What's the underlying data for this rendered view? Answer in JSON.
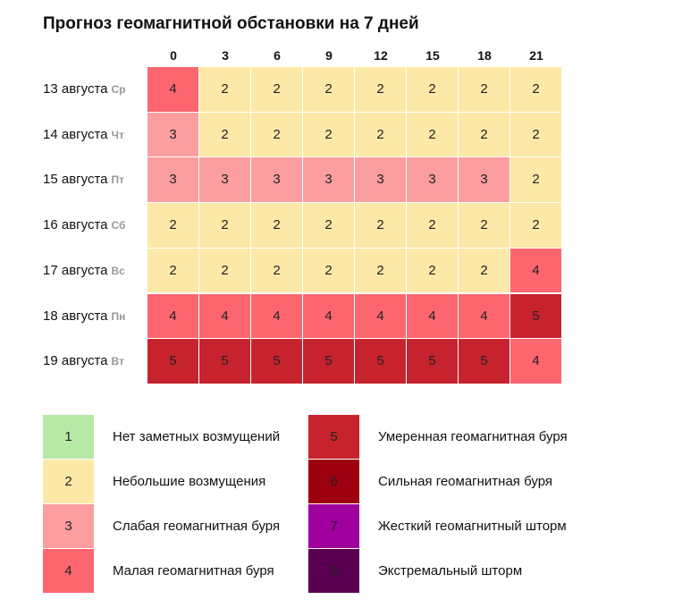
{
  "header": {
    "title": "Прогноз геомагнитной обстановки на 7 дней"
  },
  "table": {
    "columns": [
      "0",
      "3",
      "6",
      "9",
      "12",
      "15",
      "18",
      "21"
    ],
    "rows": [
      {
        "date": "13 августа",
        "weekday": "Ср",
        "values": [
          4,
          2,
          2,
          2,
          2,
          2,
          2,
          2
        ]
      },
      {
        "date": "14 августа",
        "weekday": "Чт",
        "values": [
          3,
          2,
          2,
          2,
          2,
          2,
          2,
          2
        ]
      },
      {
        "date": "15 августа",
        "weekday": "Пт",
        "values": [
          3,
          3,
          3,
          3,
          3,
          3,
          3,
          2
        ]
      },
      {
        "date": "16 августа",
        "weekday": "Сб",
        "values": [
          2,
          2,
          2,
          2,
          2,
          2,
          2,
          2
        ]
      },
      {
        "date": "17 августа",
        "weekday": "Вс",
        "values": [
          2,
          2,
          2,
          2,
          2,
          2,
          2,
          4
        ]
      },
      {
        "date": "18 августа",
        "weekday": "Пн",
        "values": [
          4,
          4,
          4,
          4,
          4,
          4,
          4,
          5
        ]
      },
      {
        "date": "19 августа",
        "weekday": "Вт",
        "values": [
          5,
          5,
          5,
          5,
          5,
          5,
          5,
          4
        ]
      }
    ]
  },
  "legend": [
    {
      "level": 1,
      "label": "Нет заметных возмущений",
      "color": "#b6e8a6"
    },
    {
      "level": 2,
      "label": "Небольшие возмущения",
      "color": "#fde9a7"
    },
    {
      "level": 3,
      "label": "Слабая геомагнитная буря",
      "color": "#fc9da0"
    },
    {
      "level": 4,
      "label": "Малая геомагнитная буря",
      "color": "#fd666f"
    },
    {
      "level": 5,
      "label": "Умеренная геомагнитная буря",
      "color": "#c6232e"
    },
    {
      "level": 6,
      "label": "Сильная геомагнитная буря",
      "color": "#9e0010"
    },
    {
      "level": 7,
      "label": "Жесткий геомагнитный шторм",
      "color": "#a0009d"
    },
    {
      "level": 8,
      "label": "Экстремальный шторм",
      "color": "#5a0050"
    }
  ]
}
